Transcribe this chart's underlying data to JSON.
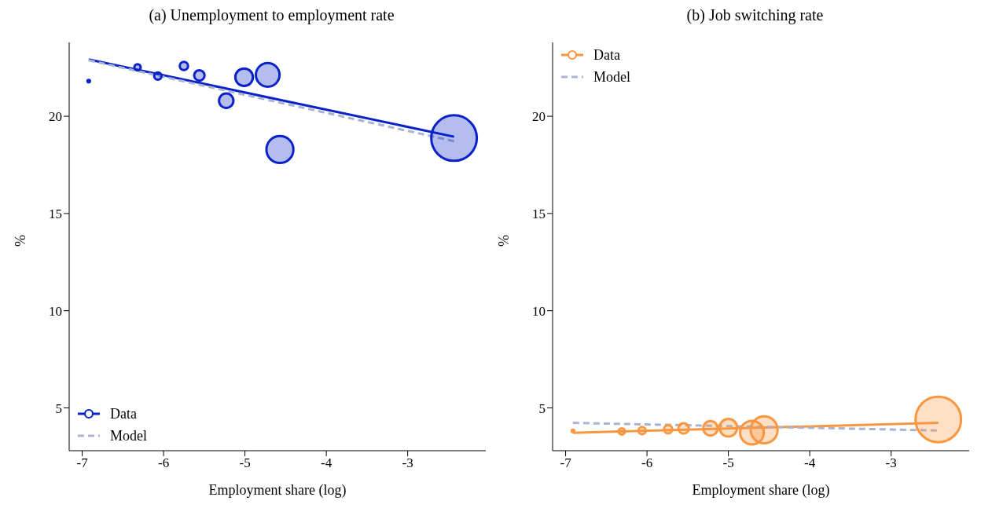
{
  "chart_data": [
    {
      "type": "bubble",
      "title": "(a) Unemployment to employment rate",
      "xlabel": "Employment share (log)",
      "ylabel": "%",
      "xlim": [
        -7.16,
        -2.04
      ],
      "ylim": [
        2.8,
        23.8
      ],
      "xticks": [
        -7,
        -6,
        -5,
        -4,
        -3
      ],
      "yticks": [
        5,
        10,
        15,
        20
      ],
      "legend": "lower left",
      "series": [
        {
          "name": "Data",
          "marker": "circle",
          "color": "#0a22c8",
          "x": [
            -6.92,
            -6.32,
            -6.07,
            -5.75,
            -5.56,
            -5.23,
            -5.01,
            -4.72,
            -4.57,
            -2.43
          ],
          "values": [
            21.81,
            22.52,
            22.07,
            22.59,
            22.1,
            20.8,
            22.01,
            22.13,
            18.29,
            18.88
          ],
          "sizes": [
            0.003,
            0.019,
            0.026,
            0.033,
            0.052,
            0.1,
            0.149,
            0.27,
            0.35,
            1
          ]
        },
        {
          "type": "line",
          "color": "#0a22c8",
          "x": [
            -6.92,
            -2.43
          ],
          "values": [
            22.92,
            18.95
          ]
        },
        {
          "name": "Model",
          "type": "line",
          "line_style": "dashed",
          "color": "#aab4d0",
          "x": [
            -6.92,
            -2.43
          ],
          "values": [
            22.88,
            18.72
          ]
        }
      ]
    },
    {
      "type": "bubble",
      "title": "(b) Job switching rate",
      "xlabel": "Employment share (log)",
      "ylabel": "%",
      "xlim": [
        -7.16,
        -2.04
      ],
      "ylim": [
        2.8,
        23.8
      ],
      "xticks": [
        -7,
        -6,
        -5,
        -4,
        -3
      ],
      "yticks": [
        5,
        10,
        15,
        20
      ],
      "legend": "upper left",
      "series": [
        {
          "name": "Data",
          "marker": "circle",
          "color": "#f99640",
          "x": [
            -6.91,
            -6.31,
            -6.06,
            -5.74,
            -5.55,
            -5.22,
            -5.0,
            -4.71,
            -4.56,
            -2.42
          ],
          "values": [
            3.82,
            3.79,
            3.83,
            3.9,
            3.95,
            3.95,
            3.98,
            3.73,
            3.87,
            4.41
          ],
          "sizes": [
            0.003,
            0.019,
            0.026,
            0.033,
            0.052,
            0.1,
            0.149,
            0.27,
            0.35,
            1
          ]
        },
        {
          "type": "line",
          "color": "#f99640",
          "x": [
            -6.91,
            -2.42
          ],
          "values": [
            3.72,
            4.23
          ]
        },
        {
          "name": "Model",
          "type": "line",
          "line_style": "dashed",
          "color": "#aab4d0",
          "x": [
            -6.91,
            -2.42
          ],
          "values": [
            4.23,
            3.84
          ]
        }
      ]
    }
  ]
}
